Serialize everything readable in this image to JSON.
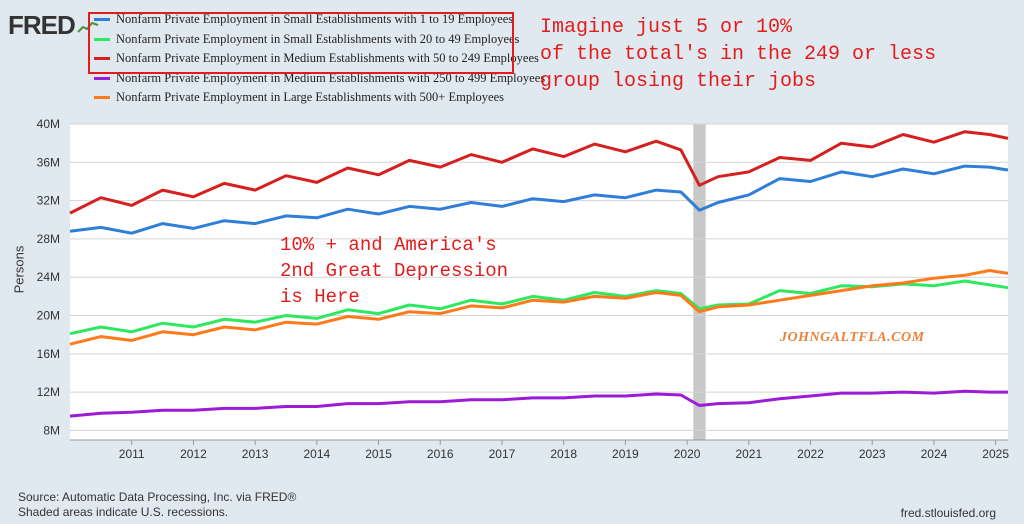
{
  "logo": "FRED",
  "legend": [
    {
      "label": "Nonfarm Private Employment in Small Establishments with 1 to 19 Employees",
      "color": "#2f7ed8"
    },
    {
      "label": "Nonfarm Private Employment in Small Establishments with 20 to 49 Employees",
      "color": "#2ee860"
    },
    {
      "label": "Nonfarm Private Employment in Medium Establishments with 50 to 249 Employees",
      "color": "#d62020"
    },
    {
      "label": "Nonfarm Private Employment in Medium Establishments with 250 to 499 Employees",
      "color": "#9b1bd6"
    },
    {
      "label": "Nonfarm Private Employment in Large Establishments with 500+ Employees",
      "color": "#ff7a1a"
    }
  ],
  "annotations": {
    "top": "Imagine just 5 or 10%\nof the total's in the 249 or less\ngroup losing their jobs",
    "middle": "10% + and America's\n2nd Great Depression\nis Here",
    "watermark": "JOHNGALTFLA.COM"
  },
  "footer": {
    "source": "Source: Automatic Data Processing, Inc. via FRED®",
    "shaded": "Shaded areas indicate U.S. recessions.",
    "url": "fred.stlouisfed.org"
  },
  "chart_data": {
    "type": "line",
    "ylabel": "Persons",
    "ylim": [
      7,
      40
    ],
    "yticks": [
      8,
      12,
      16,
      20,
      24,
      28,
      32,
      36,
      40
    ],
    "ytick_labels": [
      "8M",
      "12M",
      "16M",
      "20M",
      "24M",
      "28M",
      "32M",
      "36M",
      "40M"
    ],
    "xlim": [
      2010.0,
      2025.2
    ],
    "xticks": [
      2011,
      2012,
      2013,
      2014,
      2015,
      2016,
      2017,
      2018,
      2019,
      2020,
      2021,
      2022,
      2023,
      2024,
      2025
    ],
    "recession": [
      2020.1,
      2020.3
    ],
    "grid": true,
    "series": [
      {
        "name": "Nonfarm Private Employment in Small Establishments with 1 to 19 Employees",
        "color": "#2f7ed8",
        "x": [
          2010.0,
          2010.5,
          2011.0,
          2011.5,
          2012.0,
          2012.5,
          2013.0,
          2013.5,
          2014.0,
          2014.5,
          2015.0,
          2015.5,
          2016.0,
          2016.5,
          2017.0,
          2017.5,
          2018.0,
          2018.5,
          2019.0,
          2019.5,
          2019.9,
          2020.2,
          2020.5,
          2021.0,
          2021.5,
          2022.0,
          2022.5,
          2023.0,
          2023.5,
          2024.0,
          2024.5,
          2024.9,
          2025.2
        ],
        "values": [
          28.8,
          29.2,
          28.6,
          29.6,
          29.1,
          29.9,
          29.6,
          30.4,
          30.2,
          31.1,
          30.6,
          31.4,
          31.1,
          31.8,
          31.4,
          32.2,
          31.9,
          32.6,
          32.3,
          33.1,
          32.9,
          31.0,
          31.8,
          32.6,
          34.3,
          34.0,
          35.0,
          34.5,
          35.3,
          34.8,
          35.6,
          35.5,
          35.2
        ]
      },
      {
        "name": "Nonfarm Private Employment in Small Establishments with 20 to 49 Employees",
        "color": "#2ee860",
        "x": [
          2010.0,
          2010.5,
          2011.0,
          2011.5,
          2012.0,
          2012.5,
          2013.0,
          2013.5,
          2014.0,
          2014.5,
          2015.0,
          2015.5,
          2016.0,
          2016.5,
          2017.0,
          2017.5,
          2018.0,
          2018.5,
          2019.0,
          2019.5,
          2019.9,
          2020.2,
          2020.5,
          2021.0,
          2021.5,
          2022.0,
          2022.5,
          2023.0,
          2023.5,
          2024.0,
          2024.5,
          2024.9,
          2025.2
        ],
        "values": [
          18.1,
          18.8,
          18.3,
          19.2,
          18.8,
          19.6,
          19.3,
          20.0,
          19.7,
          20.6,
          20.2,
          21.1,
          20.7,
          21.6,
          21.2,
          22.0,
          21.6,
          22.4,
          22.0,
          22.6,
          22.3,
          20.7,
          21.1,
          21.2,
          22.6,
          22.3,
          23.1,
          23.0,
          23.3,
          23.1,
          23.6,
          23.2,
          22.9
        ]
      },
      {
        "name": "Nonfarm Private Employment in Medium Establishments with 50 to 249 Employees",
        "color": "#d62020",
        "x": [
          2010.0,
          2010.5,
          2011.0,
          2011.5,
          2012.0,
          2012.5,
          2013.0,
          2013.5,
          2014.0,
          2014.5,
          2015.0,
          2015.5,
          2016.0,
          2016.5,
          2017.0,
          2017.5,
          2018.0,
          2018.5,
          2019.0,
          2019.5,
          2019.9,
          2020.2,
          2020.5,
          2021.0,
          2021.5,
          2022.0,
          2022.5,
          2023.0,
          2023.5,
          2024.0,
          2024.5,
          2024.9,
          2025.2
        ],
        "values": [
          30.7,
          32.3,
          31.5,
          33.1,
          32.4,
          33.8,
          33.1,
          34.6,
          33.9,
          35.4,
          34.7,
          36.2,
          35.5,
          36.8,
          36.0,
          37.4,
          36.6,
          37.9,
          37.1,
          38.2,
          37.3,
          33.6,
          34.5,
          35.0,
          36.5,
          36.2,
          38.0,
          37.6,
          38.9,
          38.1,
          39.2,
          38.9,
          38.5
        ]
      },
      {
        "name": "Nonfarm Private Employment in Medium Establishments with 250 to 499 Employees",
        "color": "#9b1bd6",
        "x": [
          2010.0,
          2010.5,
          2011.0,
          2011.5,
          2012.0,
          2012.5,
          2013.0,
          2013.5,
          2014.0,
          2014.5,
          2015.0,
          2015.5,
          2016.0,
          2016.5,
          2017.0,
          2017.5,
          2018.0,
          2018.5,
          2019.0,
          2019.5,
          2019.9,
          2020.2,
          2020.5,
          2021.0,
          2021.5,
          2022.0,
          2022.5,
          2023.0,
          2023.5,
          2024.0,
          2024.5,
          2024.9,
          2025.2
        ],
        "values": [
          9.5,
          9.8,
          9.9,
          10.1,
          10.1,
          10.3,
          10.3,
          10.5,
          10.5,
          10.8,
          10.8,
          11.0,
          11.0,
          11.2,
          11.2,
          11.4,
          11.4,
          11.6,
          11.6,
          11.8,
          11.7,
          10.6,
          10.8,
          10.9,
          11.3,
          11.6,
          11.9,
          11.9,
          12.0,
          11.9,
          12.1,
          12.0,
          12.0
        ]
      },
      {
        "name": "Nonfarm Private Employment in Large Establishments with 500+ Employees",
        "color": "#ff7a1a",
        "x": [
          2010.0,
          2010.5,
          2011.0,
          2011.5,
          2012.0,
          2012.5,
          2013.0,
          2013.5,
          2014.0,
          2014.5,
          2015.0,
          2015.5,
          2016.0,
          2016.5,
          2017.0,
          2017.5,
          2018.0,
          2018.5,
          2019.0,
          2019.5,
          2019.9,
          2020.2,
          2020.5,
          2021.0,
          2021.5,
          2022.0,
          2022.5,
          2023.0,
          2023.5,
          2024.0,
          2024.5,
          2024.9,
          2025.2
        ],
        "values": [
          17.0,
          17.8,
          17.4,
          18.3,
          18.0,
          18.8,
          18.5,
          19.3,
          19.1,
          19.9,
          19.6,
          20.4,
          20.2,
          21.0,
          20.8,
          21.6,
          21.4,
          22.0,
          21.8,
          22.4,
          22.1,
          20.4,
          20.9,
          21.1,
          21.6,
          22.1,
          22.6,
          23.1,
          23.4,
          23.9,
          24.2,
          24.7,
          24.4
        ]
      }
    ]
  }
}
